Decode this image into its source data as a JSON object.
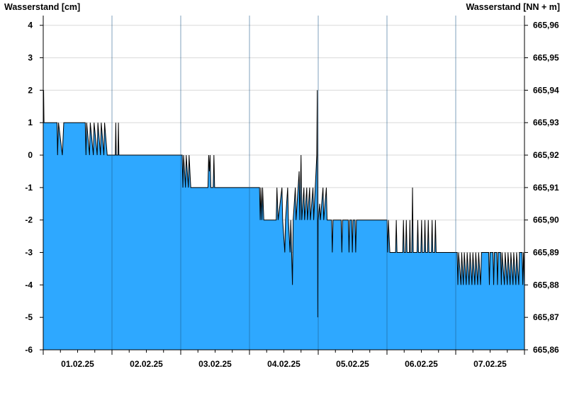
{
  "chart_data": {
    "type": "area",
    "left_axis": {
      "label": "Wasserstand [cm]",
      "ylim": [
        -6,
        4.3
      ],
      "ticks": [
        4,
        3,
        2,
        1,
        0,
        -1,
        -2,
        -3,
        -4,
        -5,
        -6
      ],
      "tick_labels": [
        "4",
        "3",
        "2",
        "1",
        "0",
        "-1",
        "-2",
        "-3",
        "-4",
        "-5",
        "-6"
      ]
    },
    "right_axis": {
      "label": "Wasserstand [NN + m]",
      "ticks": [
        665.96,
        665.95,
        665.94,
        665.93,
        665.92,
        665.91,
        665.9,
        665.89,
        665.88,
        665.87,
        665.86
      ],
      "tick_labels": [
        "665,96",
        "665,95",
        "665,94",
        "665,93",
        "665,92",
        "665,91",
        "665,90",
        "665,89",
        "665,88",
        "665,87",
        "665,86"
      ]
    },
    "x_axis": {
      "xlim": [
        "01.02.25 00:00",
        "08.02.25 00:00"
      ],
      "day_labels": [
        "01.02.25",
        "02.02.25",
        "03.02.25",
        "04.02.25",
        "05.02.25",
        "06.02.25",
        "07.02.25"
      ]
    },
    "colors": {
      "fill": "#2ea8ff",
      "line": "#000000",
      "grid": "#d9d9d9",
      "axis": "#000000"
    },
    "grid": true,
    "series": [
      {
        "values": [
          [
            "01.02.25 00:00",
            1.5
          ],
          [
            "01.02.25 00:08",
            2
          ],
          [
            "01.02.25 00:16",
            1
          ],
          [
            "01.02.25 04:50",
            1
          ],
          [
            "01.02.25 05:00",
            0
          ],
          [
            "01.02.25 05:20",
            1
          ],
          [
            "01.02.25 06:40",
            0
          ],
          [
            "01.02.25 07:10",
            1
          ],
          [
            "01.02.25 14:40",
            1
          ],
          [
            "01.02.25 14:55",
            0
          ],
          [
            "01.02.25 15:10",
            1
          ],
          [
            "01.02.25 16:10",
            0
          ],
          [
            "01.02.25 16:25",
            1
          ],
          [
            "01.02.25 17:30",
            0
          ],
          [
            "01.02.25 17:45",
            1
          ],
          [
            "01.02.25 18:50",
            0
          ],
          [
            "01.02.25 19:05",
            1
          ],
          [
            "01.02.25 20:00",
            0
          ],
          [
            "01.02.25 20:15",
            1
          ],
          [
            "01.02.25 21:10",
            0
          ],
          [
            "01.02.25 21:25",
            1
          ],
          [
            "01.02.25 22:20",
            0
          ],
          [
            "01.02.25 22:40",
            0
          ],
          [
            "02.02.25 01:10",
            0
          ],
          [
            "02.02.25 01:20",
            1
          ],
          [
            "02.02.25 01:30",
            0
          ],
          [
            "02.02.25 02:05",
            0
          ],
          [
            "02.02.25 02:15",
            1
          ],
          [
            "02.02.25 02:25",
            0
          ],
          [
            "03.02.25 00:30",
            0
          ],
          [
            "03.02.25 00:45",
            -1
          ],
          [
            "03.02.25 01:00",
            0
          ],
          [
            "03.02.25 01:40",
            -1
          ],
          [
            "03.02.25 01:55",
            0
          ],
          [
            "03.02.25 02:40",
            -1
          ],
          [
            "03.02.25 02:55",
            0
          ],
          [
            "03.02.25 03:30",
            -1
          ],
          [
            "03.02.25 09:30",
            -1
          ],
          [
            "03.02.25 09:45",
            0
          ],
          [
            "03.02.25 10:00",
            -0.5
          ],
          [
            "03.02.25 10:15",
            0
          ],
          [
            "03.02.25 10:30",
            -1
          ],
          [
            "03.02.25 11:20",
            -1
          ],
          [
            "03.02.25 11:35",
            0
          ],
          [
            "03.02.25 11:50",
            -1
          ],
          [
            "04.02.25 03:30",
            -1
          ],
          [
            "04.02.25 03:45",
            -2
          ],
          [
            "04.02.25 04:00",
            -1
          ],
          [
            "04.02.25 04:20",
            -2
          ],
          [
            "04.02.25 04:35",
            -1
          ],
          [
            "04.02.25 05:00",
            -2
          ],
          [
            "04.02.25 09:20",
            -2
          ],
          [
            "04.02.25 09:35",
            -1
          ],
          [
            "04.02.25 10:00",
            -2
          ],
          [
            "04.02.25 11:20",
            -1
          ],
          [
            "04.02.25 11:35",
            -2
          ],
          [
            "04.02.25 12:20",
            -3
          ],
          [
            "04.02.25 12:35",
            -2
          ],
          [
            "04.02.25 13:20",
            -1
          ],
          [
            "04.02.25 13:35",
            -2
          ],
          [
            "04.02.25 14:10",
            -3
          ],
          [
            "04.02.25 14:25",
            -2
          ],
          [
            "04.02.25 15:00",
            -4
          ],
          [
            "04.02.25 15:15",
            -2
          ],
          [
            "04.02.25 16:00",
            -1
          ],
          [
            "04.02.25 16:15",
            -2
          ],
          [
            "04.02.25 17:20",
            -0.5
          ],
          [
            "04.02.25 17:35",
            -2
          ],
          [
            "04.02.25 18:00",
            0
          ],
          [
            "04.02.25 18:15",
            -2
          ],
          [
            "04.02.25 19:00",
            -1
          ],
          [
            "04.02.25 19:15",
            -2
          ],
          [
            "04.02.25 20:00",
            -1
          ],
          [
            "04.02.25 20:15",
            -2
          ],
          [
            "04.02.25 21:00",
            -1
          ],
          [
            "04.02.25 21:15",
            -2
          ],
          [
            "04.02.25 22:10",
            -1
          ],
          [
            "04.02.25 22:25",
            -2
          ],
          [
            "04.02.25 23:30",
            0
          ],
          [
            "04.02.25 23:40",
            2
          ],
          [
            "04.02.25 23:50",
            -5
          ],
          [
            "05.02.25 00:00",
            -2
          ],
          [
            "05.02.25 00:30",
            -1.5
          ],
          [
            "05.02.25 00:45",
            -2
          ],
          [
            "05.02.25 01:40",
            -1
          ],
          [
            "05.02.25 01:55",
            -2
          ],
          [
            "05.02.25 02:50",
            -1
          ],
          [
            "05.02.25 03:05",
            -2
          ],
          [
            "05.02.25 04:40",
            -2
          ],
          [
            "05.02.25 04:55",
            -3
          ],
          [
            "05.02.25 05:10",
            -2
          ],
          [
            "05.02.25 08:00",
            -2
          ],
          [
            "05.02.25 08:15",
            -3
          ],
          [
            "05.02.25 08:30",
            -2
          ],
          [
            "05.02.25 10:30",
            -2
          ],
          [
            "05.02.25 10:45",
            -3
          ],
          [
            "05.02.25 11:00",
            -2
          ],
          [
            "05.02.25 11:40",
            -2
          ],
          [
            "05.02.25 11:55",
            -3
          ],
          [
            "05.02.25 12:10",
            -2
          ],
          [
            "05.02.25 12:50",
            -2
          ],
          [
            "05.02.25 13:05",
            -3
          ],
          [
            "05.02.25 13:20",
            -2
          ],
          [
            "06.02.25 00:00",
            -2
          ],
          [
            "06.02.25 00:15",
            -3
          ],
          [
            "06.02.25 00:30",
            -2
          ],
          [
            "06.02.25 01:00",
            -3
          ],
          [
            "06.02.25 03:00",
            -3
          ],
          [
            "06.02.25 03:15",
            -2
          ],
          [
            "06.02.25 03:30",
            -3
          ],
          [
            "06.02.25 05:30",
            -3
          ],
          [
            "06.02.25 05:45",
            -2
          ],
          [
            "06.02.25 06:00",
            -3
          ],
          [
            "06.02.25 06:30",
            -3
          ],
          [
            "06.02.25 06:45",
            -2
          ],
          [
            "06.02.25 07:00",
            -3
          ],
          [
            "06.02.25 07:50",
            -3
          ],
          [
            "06.02.25 08:00",
            -2
          ],
          [
            "06.02.25 08:10",
            -3
          ],
          [
            "06.02.25 08:40",
            -3
          ],
          [
            "06.02.25 08:55",
            -1
          ],
          [
            "06.02.25 09:10",
            -3
          ],
          [
            "06.02.25 10:30",
            -3
          ],
          [
            "06.02.25 10:45",
            -2
          ],
          [
            "06.02.25 11:00",
            -3
          ],
          [
            "06.02.25 11:50",
            -3
          ],
          [
            "06.02.25 12:05",
            -2
          ],
          [
            "06.02.25 12:20",
            -3
          ],
          [
            "06.02.25 13:00",
            -3
          ],
          [
            "06.02.25 13:15",
            -2
          ],
          [
            "06.02.25 13:30",
            -3
          ],
          [
            "06.02.25 14:10",
            -3
          ],
          [
            "06.02.25 14:25",
            -2
          ],
          [
            "06.02.25 14:40",
            -3
          ],
          [
            "06.02.25 15:30",
            -3
          ],
          [
            "06.02.25 15:45",
            -2
          ],
          [
            "06.02.25 16:00",
            -3
          ],
          [
            "06.02.25 16:40",
            -3
          ],
          [
            "06.02.25 16:55",
            -2
          ],
          [
            "06.02.25 17:10",
            -3
          ],
          [
            "06.02.25 17:30",
            -3
          ],
          [
            "07.02.25 00:30",
            -3
          ],
          [
            "07.02.25 00:45",
            -4
          ],
          [
            "07.02.25 01:00",
            -3
          ],
          [
            "07.02.25 01:50",
            -4
          ],
          [
            "07.02.25 02:05",
            -3
          ],
          [
            "07.02.25 02:40",
            -4
          ],
          [
            "07.02.25 03:00",
            -3
          ],
          [
            "07.02.25 03:40",
            -4
          ],
          [
            "07.02.25 04:00",
            -3
          ],
          [
            "07.02.25 04:40",
            -4
          ],
          [
            "07.02.25 05:00",
            -3
          ],
          [
            "07.02.25 05:40",
            -4
          ],
          [
            "07.02.25 06:00",
            -3
          ],
          [
            "07.02.25 06:40",
            -4
          ],
          [
            "07.02.25 07:00",
            -3
          ],
          [
            "07.02.25 07:40",
            -4
          ],
          [
            "07.02.25 08:00",
            -3
          ],
          [
            "07.02.25 08:40",
            -4
          ],
          [
            "07.02.25 09:00",
            -3
          ],
          [
            "07.02.25 11:30",
            -3
          ],
          [
            "07.02.25 11:45",
            -4
          ],
          [
            "07.02.25 12:00",
            -3
          ],
          [
            "07.02.25 13:00",
            -3
          ],
          [
            "07.02.25 13:15",
            -4
          ],
          [
            "07.02.25 13:30",
            -3
          ],
          [
            "07.02.25 14:20",
            -3
          ],
          [
            "07.02.25 14:35",
            -4
          ],
          [
            "07.02.25 14:50",
            -3
          ],
          [
            "07.02.25 15:40",
            -3
          ],
          [
            "07.02.25 15:55",
            -4
          ],
          [
            "07.02.25 16:10",
            -3
          ],
          [
            "07.02.25 17:00",
            -4
          ],
          [
            "07.02.25 17:15",
            -3
          ],
          [
            "07.02.25 18:00",
            -4
          ],
          [
            "07.02.25 18:15",
            -3
          ],
          [
            "07.02.25 19:00",
            -4
          ],
          [
            "07.02.25 19:15",
            -3
          ],
          [
            "07.02.25 20:00",
            -4
          ],
          [
            "07.02.25 20:15",
            -3
          ],
          [
            "07.02.25 21:00",
            -4
          ],
          [
            "07.02.25 21:15",
            -3
          ],
          [
            "07.02.25 22:00",
            -4
          ],
          [
            "07.02.25 22:15",
            -3
          ],
          [
            "07.02.25 23:10",
            -3
          ],
          [
            "07.02.25 23:25",
            -4
          ],
          [
            "07.02.25 23:40",
            -3
          ],
          [
            "08.02.25 00:00",
            -4
          ]
        ]
      }
    ]
  }
}
